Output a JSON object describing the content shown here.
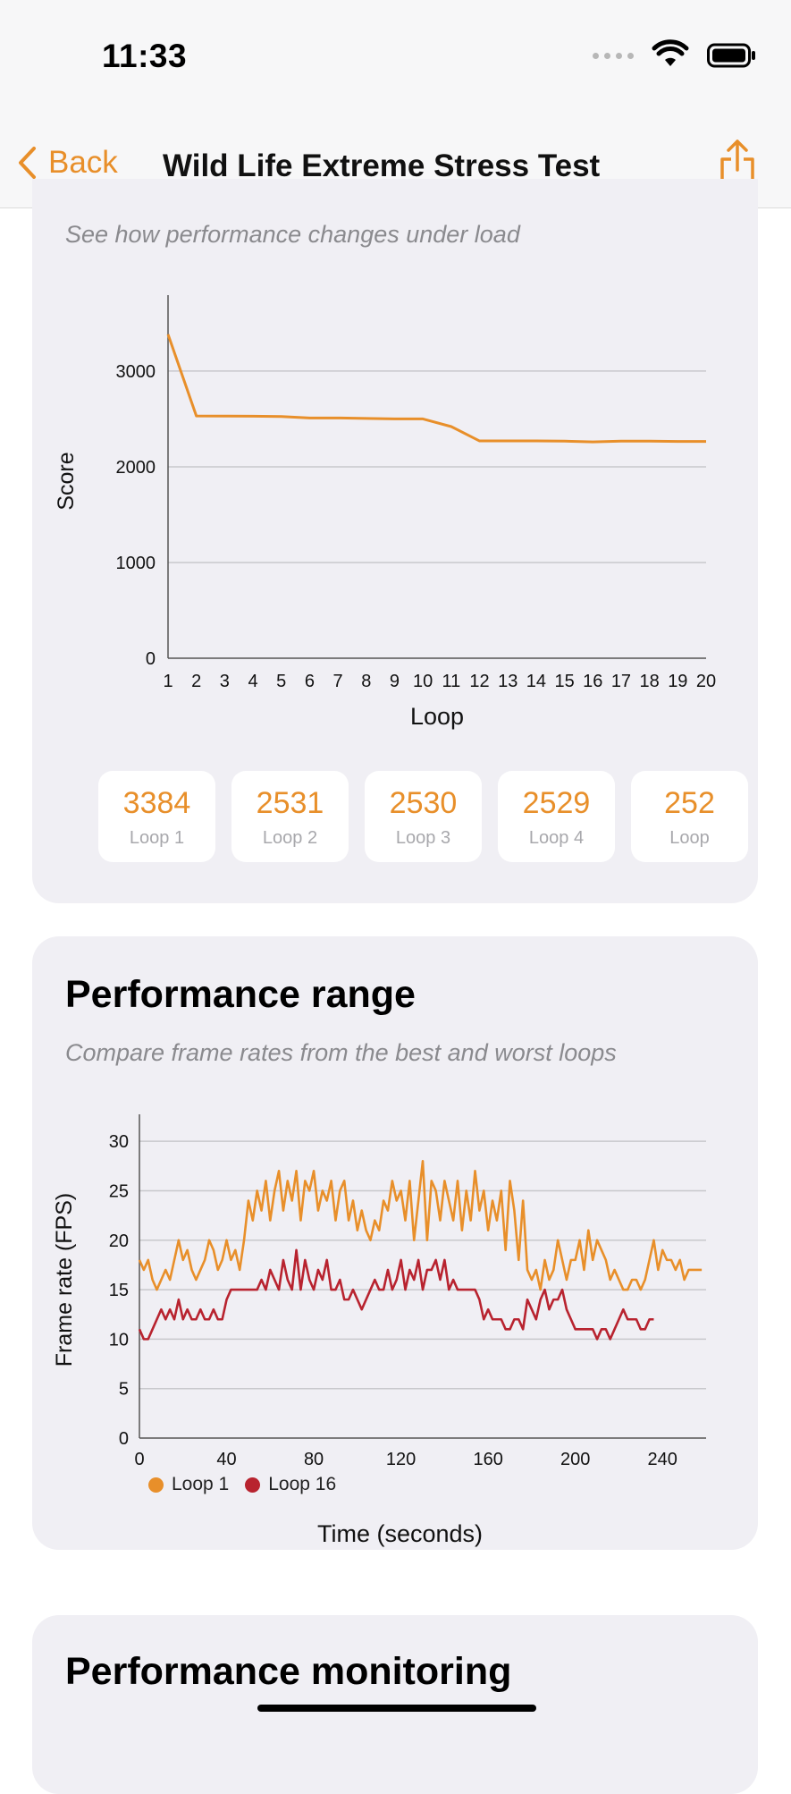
{
  "status": {
    "time": "11:33"
  },
  "nav": {
    "back_label": "Back",
    "title": "Wild Life Extreme Stress Test"
  },
  "stability": {
    "subtitle": "See how performance changes under load"
  },
  "performance_range": {
    "title": "Performance range",
    "subtitle": "Compare frame rates from the best and worst loops",
    "legend": [
      {
        "label": "Loop 1",
        "color": "#e88f2a"
      },
      {
        "label": "Loop 16",
        "color": "#b8232f"
      }
    ],
    "x_title": "Time (seconds)"
  },
  "performance_monitoring": {
    "title": "Performance monitoring"
  },
  "loop_scores": [
    {
      "value": "3384",
      "label": "Loop 1"
    },
    {
      "value": "2531",
      "label": "Loop 2"
    },
    {
      "value": "2530",
      "label": "Loop 3"
    },
    {
      "value": "2529",
      "label": "Loop 4"
    },
    {
      "value": "252",
      "label": "Loop"
    }
  ],
  "colors": {
    "accent": "#e88f2a",
    "loop16": "#b8232f",
    "card_bg": "#f0eff4"
  },
  "chart_data": [
    {
      "type": "line",
      "x": [
        1,
        2,
        3,
        4,
        5,
        6,
        7,
        8,
        9,
        10,
        11,
        12,
        13,
        14,
        15,
        16,
        17,
        18,
        19,
        20
      ],
      "series": [
        {
          "values": [
            3384,
            2531,
            2530,
            2529,
            2525,
            2510,
            2510,
            2505,
            2500,
            2500,
            2420,
            2270,
            2270,
            2270,
            2268,
            2260,
            2268,
            2268,
            2265,
            2265
          ]
        }
      ],
      "xlabel": "Loop",
      "ylabel": "Score",
      "ylim": [
        0,
        3700
      ],
      "yticks": [
        0,
        1000,
        2000,
        3000
      ],
      "xticks": [
        1,
        2,
        3,
        4,
        5,
        6,
        7,
        8,
        9,
        10,
        11,
        12,
        13,
        14,
        15,
        16,
        17,
        18,
        19,
        20
      ],
      "grid": true
    },
    {
      "type": "line",
      "xlabel": "Time (seconds)",
      "ylabel": "Frame rate (FPS)",
      "xlim": [
        0,
        260
      ],
      "ylim": [
        0,
        32
      ],
      "xticks": [
        0,
        40,
        80,
        120,
        160,
        200,
        240
      ],
      "yticks": [
        0,
        5,
        10,
        15,
        20,
        25,
        30
      ],
      "grid": true,
      "legend": "bottom-left",
      "series": [
        {
          "name": "Loop 1",
          "x": [
            0,
            2,
            4,
            6,
            8,
            10,
            12,
            14,
            16,
            18,
            20,
            22,
            24,
            26,
            28,
            30,
            32,
            34,
            36,
            38,
            40,
            42,
            44,
            46,
            48,
            50,
            52,
            54,
            56,
            58,
            60,
            62,
            64,
            66,
            68,
            70,
            72,
            74,
            76,
            78,
            80,
            82,
            84,
            86,
            88,
            90,
            92,
            94,
            96,
            98,
            100,
            102,
            104,
            106,
            108,
            110,
            112,
            114,
            116,
            118,
            120,
            122,
            124,
            126,
            128,
            130,
            132,
            134,
            136,
            138,
            140,
            142,
            144,
            146,
            148,
            150,
            152,
            154,
            156,
            158,
            160,
            162,
            164,
            166,
            168,
            170,
            172,
            174,
            176,
            178,
            180,
            182,
            184,
            186,
            188,
            190,
            192,
            194,
            196,
            198,
            200,
            202,
            204,
            206,
            208,
            210,
            212,
            214,
            216,
            218,
            220,
            222,
            224,
            226,
            228,
            230,
            232,
            234,
            236,
            238,
            240,
            242,
            244,
            246,
            248,
            250,
            252,
            254,
            256,
            258
          ],
          "values": [
            18,
            17,
            18,
            16,
            15,
            16,
            17,
            16,
            18,
            20,
            18,
            19,
            17,
            16,
            17,
            18,
            20,
            19,
            17,
            18,
            20,
            18,
            19,
            17,
            20,
            24,
            22,
            25,
            23,
            26,
            22,
            25,
            27,
            23,
            26,
            24,
            27,
            22,
            26,
            25,
            27,
            23,
            25,
            24,
            26,
            22,
            25,
            26,
            22,
            24,
            21,
            23,
            21,
            20,
            22,
            21,
            24,
            23,
            26,
            24,
            25,
            22,
            26,
            20,
            24,
            28,
            20,
            26,
            25,
            22,
            26,
            24,
            22,
            26,
            21,
            25,
            22,
            27,
            23,
            25,
            21,
            24,
            22,
            25,
            19,
            26,
            23,
            18,
            24,
            17,
            16,
            17,
            15,
            18,
            16,
            17,
            20,
            18,
            16,
            18,
            18,
            20,
            17,
            21,
            18,
            20,
            19,
            18,
            16,
            17,
            16,
            15,
            15,
            16,
            16,
            15,
            16,
            18,
            20,
            17,
            19,
            18,
            18,
            17,
            18,
            16,
            17,
            17,
            17,
            17
          ]
        },
        {
          "name": "Loop 16",
          "x": [
            0,
            2,
            4,
            6,
            8,
            10,
            12,
            14,
            16,
            18,
            20,
            22,
            24,
            26,
            28,
            30,
            32,
            34,
            36,
            38,
            40,
            42,
            44,
            46,
            48,
            50,
            52,
            54,
            56,
            58,
            60,
            62,
            64,
            66,
            68,
            70,
            72,
            74,
            76,
            78,
            80,
            82,
            84,
            86,
            88,
            90,
            92,
            94,
            96,
            98,
            100,
            102,
            104,
            106,
            108,
            110,
            112,
            114,
            116,
            118,
            120,
            122,
            124,
            126,
            128,
            130,
            132,
            134,
            136,
            138,
            140,
            142,
            144,
            146,
            148,
            150,
            152,
            154,
            156,
            158,
            160,
            162,
            164,
            166,
            168,
            170,
            172,
            174,
            176,
            178,
            180,
            182,
            184,
            186,
            188,
            190,
            192,
            194,
            196,
            198,
            200,
            202,
            204,
            206,
            208,
            210,
            212,
            214,
            216,
            218,
            220,
            222,
            224,
            226,
            228,
            230,
            232,
            234,
            236
          ],
          "values": [
            11,
            10,
            10,
            11,
            12,
            13,
            12,
            13,
            12,
            14,
            12,
            13,
            12,
            12,
            13,
            12,
            12,
            13,
            12,
            12,
            14,
            15,
            15,
            15,
            15,
            15,
            15,
            15,
            16,
            15,
            17,
            16,
            15,
            18,
            16,
            15,
            19,
            15,
            18,
            16,
            15,
            17,
            16,
            18,
            15,
            15,
            16,
            14,
            14,
            15,
            14,
            13,
            14,
            15,
            16,
            15,
            15,
            17,
            15,
            16,
            18,
            15,
            17,
            16,
            18,
            15,
            17,
            17,
            18,
            16,
            18,
            15,
            16,
            15,
            15,
            15,
            15,
            15,
            14,
            12,
            13,
            12,
            12,
            12,
            11,
            11,
            12,
            12,
            11,
            14,
            13,
            12,
            14,
            15,
            13,
            14,
            14,
            15,
            13,
            12,
            11,
            11,
            11,
            11,
            11,
            10,
            11,
            11,
            10,
            11,
            12,
            13,
            12,
            12,
            12,
            11,
            11,
            12,
            12
          ]
        }
      ]
    }
  ]
}
